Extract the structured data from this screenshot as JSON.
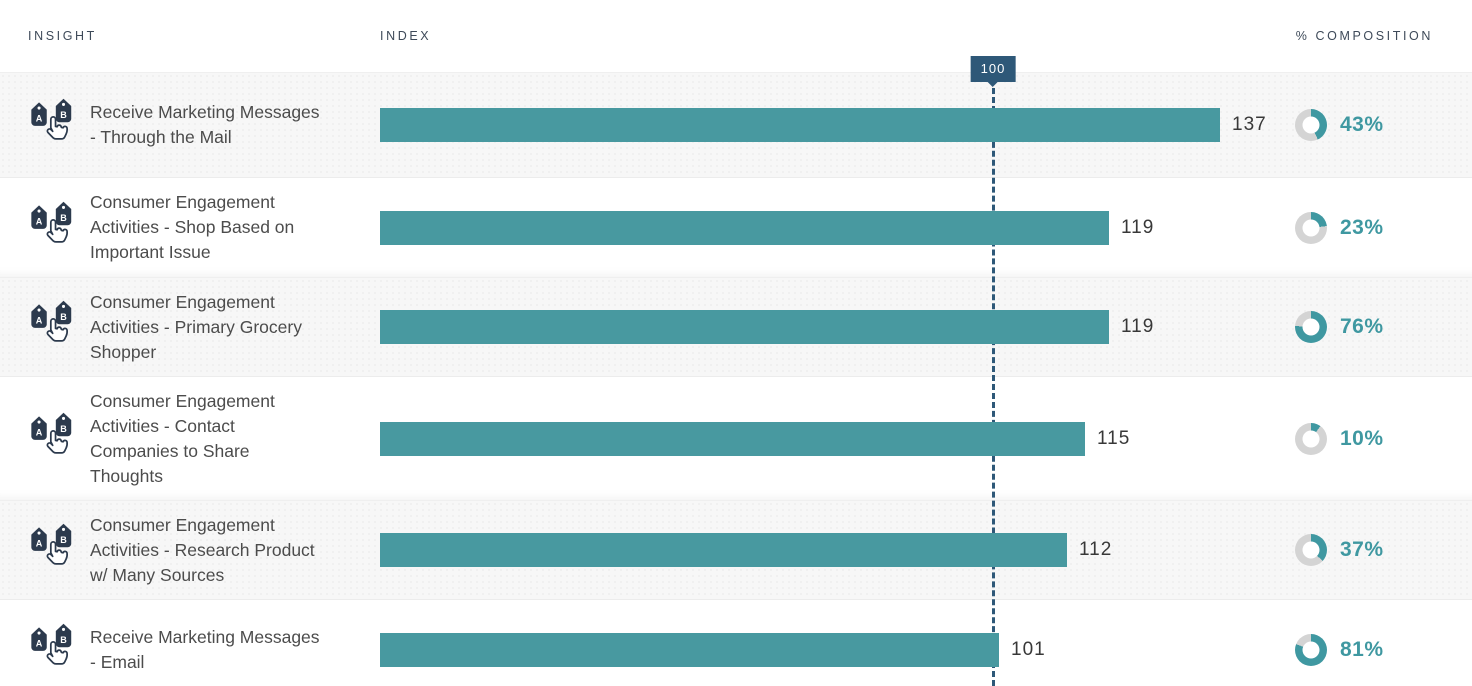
{
  "header": {
    "insight": "INSIGHT",
    "index": "INDEX",
    "composition": "% COMPOSITION"
  },
  "guide": {
    "label": "100",
    "value": 100
  },
  "colors": {
    "bar": "#4899a0",
    "accent_text": "#3f98a1",
    "donut_track": "#d4d4d4",
    "guide_blue": "#2e5878",
    "icon_navy": "#2c3a4d",
    "row_alt_bg": "#f7f7f7"
  },
  "icons": {
    "row_icon": "ab-compare-tags-pointer-icon"
  },
  "rows": [
    {
      "insight": "Receive Marketing Messages - Through the Mail",
      "index": 137,
      "composition": 43
    },
    {
      "insight": "Consumer Engagement Activities - Shop Based on Important Issue",
      "index": 119,
      "composition": 23
    },
    {
      "insight": "Consumer Engagement Activities - Primary Grocery Shopper",
      "index": 119,
      "composition": 76
    },
    {
      "insight": "Consumer Engagement Activities - Contact Companies to Share Thoughts",
      "index": 115,
      "composition": 10
    },
    {
      "insight": "Consumer Engagement Activities - Research Product w/ Many Sources",
      "index": 112,
      "composition": 37
    },
    {
      "insight": "Receive Marketing Messages - Email",
      "index": 101,
      "composition": 81
    }
  ],
  "chart_data": {
    "type": "bar",
    "orientation": "horizontal",
    "categories": [
      "Receive Marketing Messages - Through the Mail",
      "Consumer Engagement Activities - Shop Based on Important Issue",
      "Consumer Engagement Activities - Primary Grocery Shopper",
      "Consumer Engagement Activities - Contact Companies to Share Thoughts",
      "Consumer Engagement Activities - Research Product w/ Many Sources",
      "Receive Marketing Messages - Email"
    ],
    "series": [
      {
        "name": "Index",
        "values": [
          137,
          119,
          119,
          115,
          112,
          101
        ]
      },
      {
        "name": "% Composition",
        "values": [
          43,
          23,
          76,
          10,
          37,
          81
        ]
      }
    ],
    "reference_line": {
      "label": "100",
      "value": 100
    },
    "xlim": [
      0,
      147
    ],
    "grid": false,
    "legend": false
  }
}
